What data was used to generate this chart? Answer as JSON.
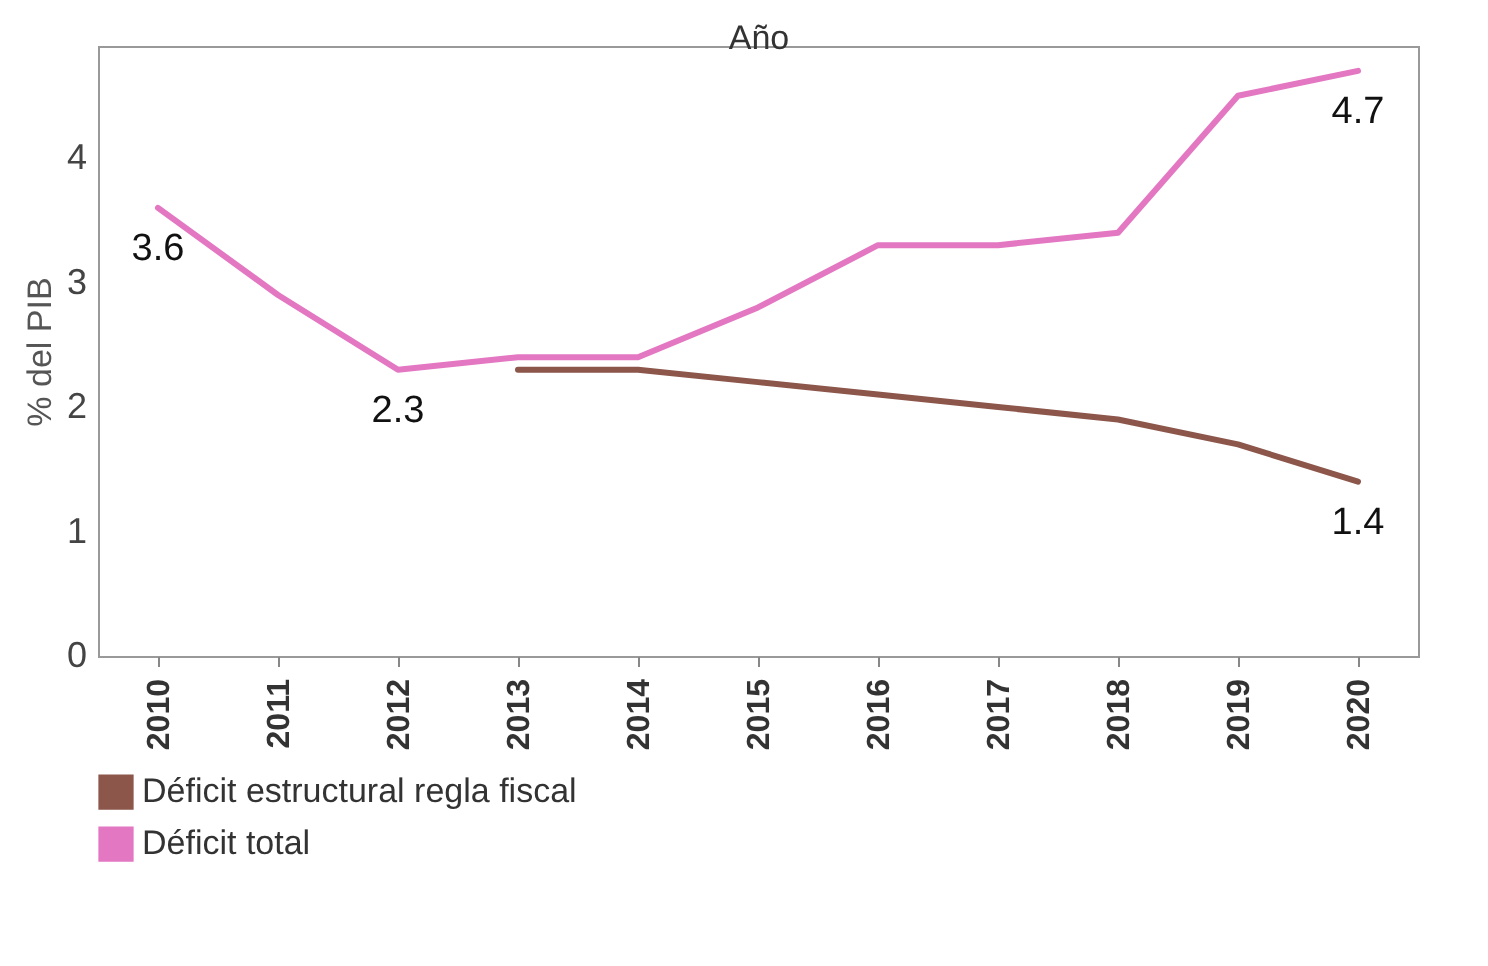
{
  "chart_data": {
    "type": "line",
    "xlabel": "Año",
    "ylabel": "% del PIB",
    "categories": [
      "2010",
      "2011",
      "2012",
      "2013",
      "2014",
      "2015",
      "2016",
      "2017",
      "2018",
      "2019",
      "2020"
    ],
    "series": [
      {
        "name": "Déficit estructural regla fiscal",
        "color": "#8c564b",
        "values": [
          null,
          null,
          null,
          2.3,
          2.3,
          2.2,
          2.1,
          2.0,
          1.9,
          1.7,
          1.4
        ],
        "value_labels": [
          null,
          null,
          null,
          null,
          null,
          null,
          null,
          null,
          null,
          null,
          "1.4"
        ]
      },
      {
        "name": "Déficit total",
        "color": "#e377c2",
        "values": [
          3.6,
          2.9,
          2.3,
          2.4,
          2.4,
          2.8,
          3.3,
          3.3,
          3.4,
          4.5,
          4.7
        ],
        "value_labels": [
          "3.6",
          null,
          "2.3",
          null,
          null,
          null,
          null,
          null,
          null,
          null,
          "4.7"
        ]
      }
    ],
    "ylim": [
      0,
      4.9
    ],
    "yticks": [
      0,
      1,
      2,
      3,
      4
    ],
    "grid": false,
    "legend": "bottom left",
    "marker": "none",
    "line_style": "solid"
  }
}
